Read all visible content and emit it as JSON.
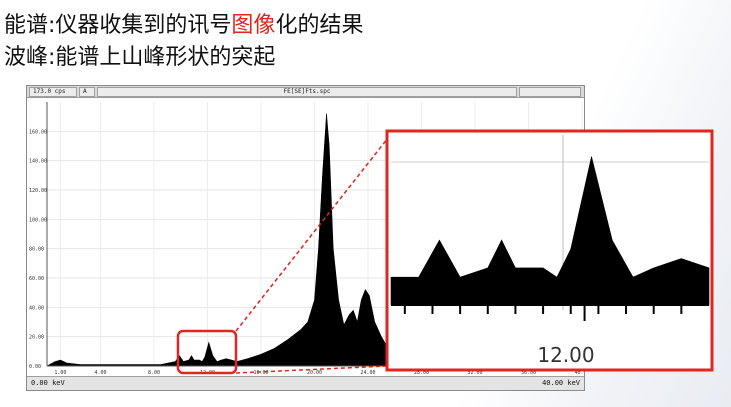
{
  "slide": {
    "line1_a": "能谱:仪器收集到的讯号",
    "line1_hl": "图像",
    "line1_b": "化的结果",
    "line2": "波峰:能谱上山峰形状的突起",
    "highlight_color": "#e0261e"
  },
  "viewer": {
    "count_readout": "173.0 cps",
    "mode": "A",
    "filename": "FE[SE]Fts.spc",
    "range_start": "0.00 keV",
    "range_end": "40.00 keV"
  },
  "chart_data": {
    "type": "line",
    "xlabel": "",
    "ylabel": "",
    "xlim": [
      0,
      40
    ],
    "ylim": [
      0,
      180
    ],
    "y_ticks": [
      "0.00",
      "20.00",
      "40.00",
      "60.00",
      "80.00",
      "100.00",
      "120.00",
      "140.00",
      "160.00"
    ],
    "x_ticks": [
      "1.00",
      "4.00",
      "8.00",
      "12.00",
      "16.00",
      "20.00",
      "24.00",
      "28.00",
      "32.00",
      "36.00",
      "40.00"
    ],
    "series": [
      {
        "points": [
          [
            0.0,
            0
          ],
          [
            0.6,
            3
          ],
          [
            1.0,
            4
          ],
          [
            1.5,
            2
          ],
          [
            2.5,
            1
          ],
          [
            4.0,
            1
          ],
          [
            6.0,
            1
          ],
          [
            8.5,
            1
          ],
          [
            9.6,
            3
          ],
          [
            9.9,
            7
          ],
          [
            10.2,
            3
          ],
          [
            10.6,
            4
          ],
          [
            10.8,
            7
          ],
          [
            11.0,
            4
          ],
          [
            11.4,
            4
          ],
          [
            11.6,
            3
          ],
          [
            11.8,
            6
          ],
          [
            12.1,
            16
          ],
          [
            12.4,
            7
          ],
          [
            12.7,
            3
          ],
          [
            13.0,
            4
          ],
          [
            13.4,
            5
          ],
          [
            13.8,
            4
          ],
          [
            14.2,
            3
          ],
          [
            15.0,
            5
          ],
          [
            16.0,
            8
          ],
          [
            17.0,
            12
          ],
          [
            18.0,
            18
          ],
          [
            19.0,
            25
          ],
          [
            19.5,
            30
          ],
          [
            20.0,
            45
          ],
          [
            20.3,
            80
          ],
          [
            20.6,
            130
          ],
          [
            20.9,
            172
          ],
          [
            21.1,
            150
          ],
          [
            21.4,
            80
          ],
          [
            21.8,
            45
          ],
          [
            22.2,
            28
          ],
          [
            22.6,
            35
          ],
          [
            22.9,
            38
          ],
          [
            23.2,
            30
          ],
          [
            23.5,
            45
          ],
          [
            23.8,
            52
          ],
          [
            24.1,
            48
          ],
          [
            24.5,
            30
          ],
          [
            25.0,
            20
          ],
          [
            25.5,
            12
          ],
          [
            26.0,
            6
          ],
          [
            27.0,
            3
          ],
          [
            28.0,
            2
          ],
          [
            30.0,
            1
          ],
          [
            40.0,
            0
          ]
        ]
      }
    ],
    "zoom": {
      "center_label": "12.00",
      "xlim": [
        9.2,
        13.8
      ],
      "ylim": [
        0,
        18
      ]
    }
  }
}
